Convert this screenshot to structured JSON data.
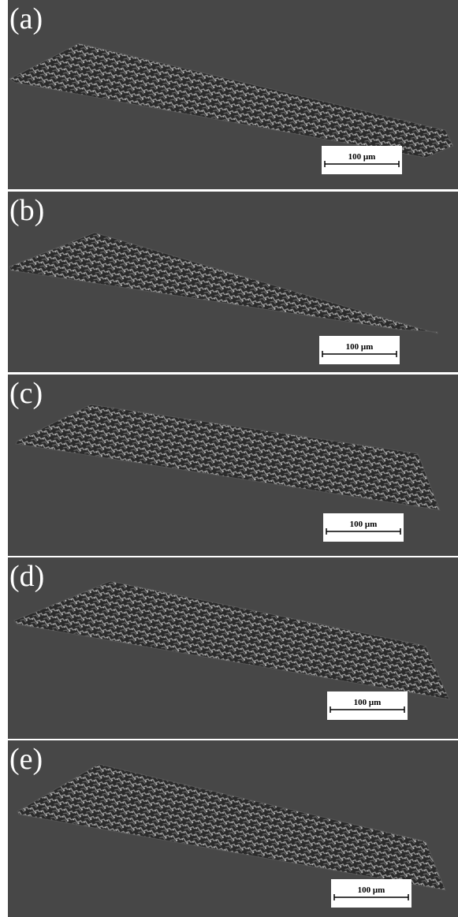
{
  "panels": [
    {
      "label": "(a)",
      "scale": "100 μm"
    },
    {
      "label": "(b)",
      "scale": "100 μm"
    },
    {
      "label": "(c)",
      "scale": "100 μm"
    },
    {
      "label": "(d)",
      "scale": "100 μm"
    },
    {
      "label": "(e)",
      "scale": "100 μm"
    }
  ]
}
